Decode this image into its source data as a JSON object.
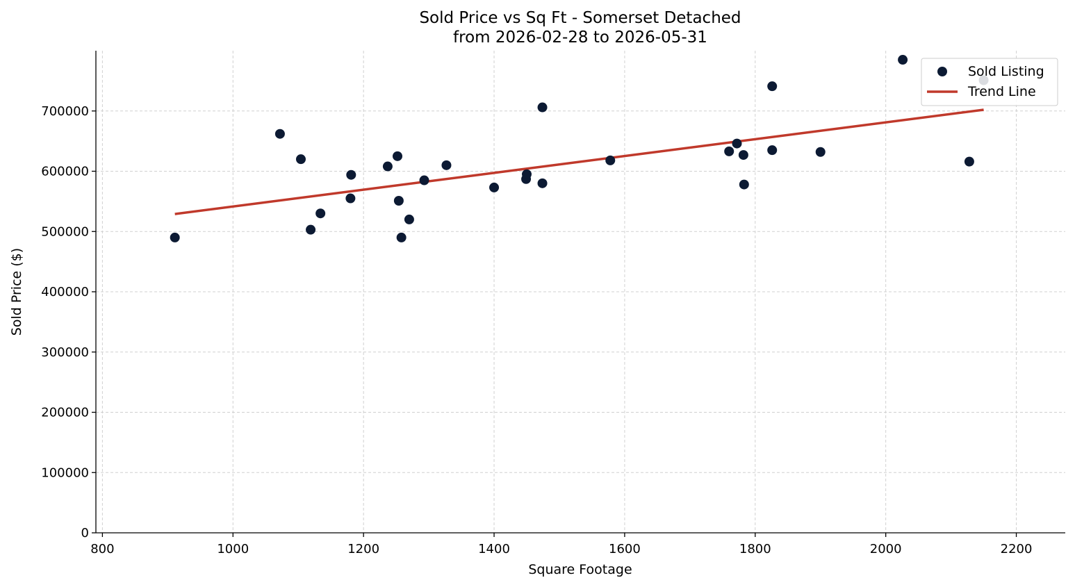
{
  "chart_data": {
    "type": "scatter",
    "title": "Sold Price vs Sq Ft - Somerset Detached",
    "subtitle": "from 2026-02-28 to 2026-05-31",
    "xlabel": "Square Footage",
    "ylabel": "Sold Price ($)",
    "xlim": [
      790,
      2275
    ],
    "ylim": [
      0,
      800000
    ],
    "x_ticks": [
      800,
      1000,
      1200,
      1400,
      1600,
      1800,
      2000,
      2200
    ],
    "y_ticks": [
      0,
      100000,
      200000,
      300000,
      400000,
      500000,
      600000,
      700000
    ],
    "grid": true,
    "legend": {
      "position": "top-right",
      "entries": [
        "Sold Listing",
        "Trend Line"
      ]
    },
    "colors": {
      "points": "#0c1a33",
      "trend": "#c0392b"
    },
    "series": [
      {
        "name": "Sold Listing",
        "type": "scatter",
        "points": [
          [
            911,
            490000
          ],
          [
            1072,
            662000
          ],
          [
            1104,
            620000
          ],
          [
            1119,
            503000
          ],
          [
            1134,
            530000
          ],
          [
            1180,
            555000
          ],
          [
            1181,
            594000
          ],
          [
            1237,
            608000
          ],
          [
            1252,
            625000
          ],
          [
            1254,
            551000
          ],
          [
            1258,
            490000
          ],
          [
            1270,
            520000
          ],
          [
            1293,
            585000
          ],
          [
            1327,
            610000
          ],
          [
            1400,
            573000
          ],
          [
            1449,
            587000
          ],
          [
            1450,
            595000
          ],
          [
            1474,
            706000
          ],
          [
            1474,
            580000
          ],
          [
            1578,
            618000
          ],
          [
            1760,
            633000
          ],
          [
            1772,
            646000
          ],
          [
            1782,
            627000
          ],
          [
            1783,
            578000
          ],
          [
            1826,
            741000
          ],
          [
            1826,
            635000
          ],
          [
            1900,
            632000
          ],
          [
            2026,
            785000
          ],
          [
            2128,
            616000
          ],
          [
            2150,
            751000
          ]
        ]
      },
      {
        "name": "Trend Line",
        "type": "line",
        "points": [
          [
            911,
            529000
          ],
          [
            2150,
            702000
          ]
        ]
      }
    ]
  }
}
